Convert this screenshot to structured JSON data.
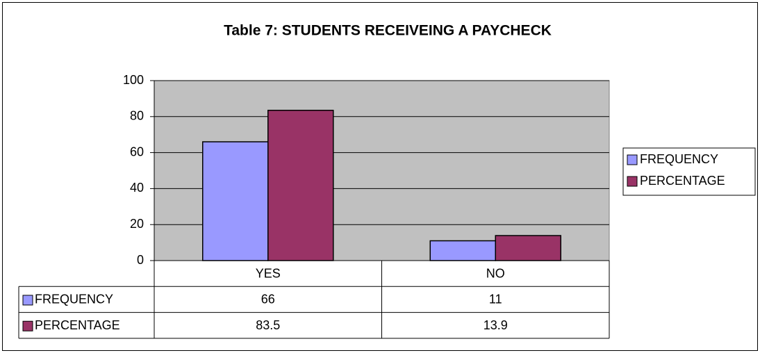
{
  "chart_data": {
    "type": "bar",
    "title": "Table 7: STUDENTS RECEIVEING A PAYCHECK",
    "categories": [
      "YES",
      "NO"
    ],
    "series": [
      {
        "name": "FREQUENCY",
        "color": "#9999ff",
        "values": [
          66,
          11
        ]
      },
      {
        "name": "PERCENTAGE",
        "color": "#993366",
        "values": [
          83.5,
          13.9
        ]
      }
    ],
    "ylim": [
      0,
      100
    ],
    "yticks": [
      0,
      20,
      40,
      60,
      80,
      100
    ],
    "grid": true,
    "legend": "right",
    "data_table": true
  }
}
